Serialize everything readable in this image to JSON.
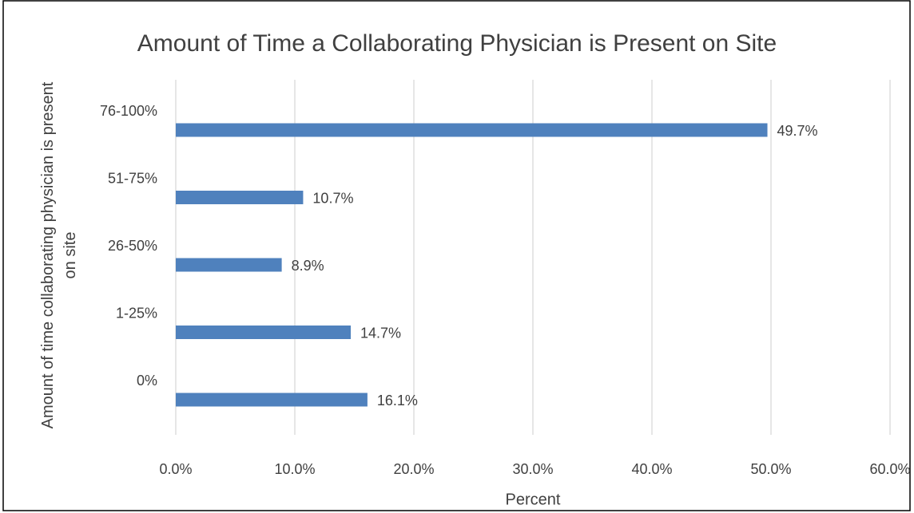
{
  "chart_data": {
    "type": "bar",
    "orientation": "horizontal",
    "title": "Amount of Time a Collaborating Physician is Present on Site",
    "x_label": "Percent",
    "y_label": "Amount of time collaborating physician is present on site",
    "categories": [
      "76-100%",
      "51-75%",
      "26-50%",
      "1-25%",
      "0%"
    ],
    "values": [
      49.7,
      10.7,
      8.9,
      14.7,
      16.1
    ],
    "value_labels": [
      "49.7%",
      "10.7%",
      "8.9%",
      "14.7%",
      "16.1%"
    ],
    "color": "#4f81bd",
    "xlim": [
      0,
      60
    ],
    "xticks": [
      {
        "value": 0,
        "label": "0.0%"
      },
      {
        "value": 10,
        "label": "10.0%"
      },
      {
        "value": 20,
        "label": "20.0%"
      },
      {
        "value": 30,
        "label": "30.0%"
      },
      {
        "value": 40,
        "label": "40.0%"
      },
      {
        "value": 50,
        "label": "50.0%"
      },
      {
        "value": 60,
        "label": "60.0%"
      }
    ],
    "grid": true
  }
}
